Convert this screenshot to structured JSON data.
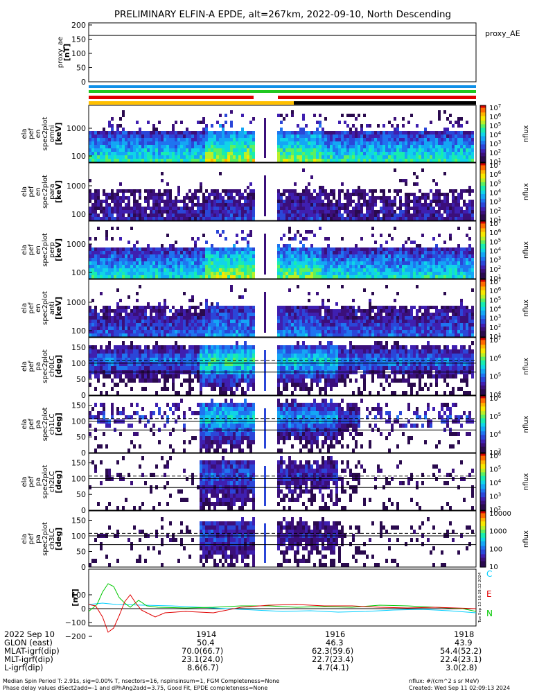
{
  "title": "PRELIMINARY ELFIN-A EPDE, alt=267km, 2022-09-10, North Descending",
  "chart_data": [
    {
      "type": "line",
      "panel": "proxy_ae",
      "ylabel_lines": [
        "proxy_ae",
        "[nT]"
      ],
      "ylim": [
        0,
        200
      ],
      "yticks": [
        "200",
        "150",
        "100",
        "50",
        "0"
      ],
      "legend": "proxy_AE",
      "series": [
        {
          "name": "proxy_AE",
          "value": 163
        }
      ]
    },
    {
      "type": "heatmap",
      "panels": [
        {
          "id": "en0",
          "ylabel_lines": [
            "ela",
            "pef",
            "en",
            "spec2plot",
            "omni",
            "[keV]"
          ],
          "yscale": "log",
          "yticks": [
            "1000",
            "100"
          ],
          "cbar_ticks": [
            "10^7",
            "10^6",
            "10^5",
            "10^4",
            "10^3",
            "10^2",
            "10^1"
          ],
          "cbar_label": "nflux"
        },
        {
          "id": "en1",
          "ylabel_lines": [
            "ela",
            "pef",
            "en",
            "spec2plot",
            "para",
            "[keV]"
          ],
          "yscale": "log",
          "yticks": [
            "1000",
            "100"
          ],
          "cbar_ticks": [
            "10^7",
            "10^6",
            "10^5",
            "10^4",
            "10^3",
            "10^2",
            "10^1"
          ],
          "cbar_label": "nflux"
        },
        {
          "id": "en2",
          "ylabel_lines": [
            "ela",
            "pef",
            "en",
            "spec2plot",
            "perp",
            "[keV]"
          ],
          "yscale": "log",
          "yticks": [
            "1000",
            "100"
          ],
          "cbar_ticks": [
            "10^7",
            "10^6",
            "10^5",
            "10^4",
            "10^3",
            "10^2",
            "10^1"
          ],
          "cbar_label": "nflux"
        },
        {
          "id": "en3",
          "ylabel_lines": [
            "ela",
            "pef",
            "en",
            "spec2plot",
            "anti",
            "[keV]"
          ],
          "yscale": "log",
          "yticks": [
            "1000",
            "100"
          ],
          "cbar_ticks": [
            "10^7",
            "10^6",
            "10^5",
            "10^4",
            "10^3",
            "10^2",
            "10^1"
          ],
          "cbar_label": "nflux"
        },
        {
          "id": "pa0",
          "ylabel_lines": [
            "ela",
            "pef",
            "pa",
            "spec2plot",
            "ch0LC",
            "[deg]"
          ],
          "yscale": "linear",
          "yticks": [
            "150",
            "100",
            "50",
            "0"
          ],
          "cbar_ticks": [
            "10^7",
            "10^6",
            "10^5",
            "10^4"
          ],
          "cbar_label": "nflux"
        },
        {
          "id": "pa1",
          "ylabel_lines": [
            "ela",
            "pef",
            "pa",
            "spec2plot",
            "ch1LC",
            "[deg]"
          ],
          "yscale": "linear",
          "yticks": [
            "150",
            "100",
            "50",
            "0"
          ],
          "cbar_ticks": [
            "10^6",
            "10^5",
            "10^4",
            "10^3"
          ],
          "cbar_label": "nflux"
        },
        {
          "id": "pa2",
          "ylabel_lines": [
            "ela",
            "pef",
            "pa",
            "spec2plot",
            "ch2LC",
            "[deg]"
          ],
          "yscale": "linear",
          "yticks": [
            "150",
            "100",
            "50",
            "0"
          ],
          "cbar_ticks": [
            "10^6",
            "10^5",
            "10^4",
            "10^3",
            "10^2"
          ],
          "cbar_label": "nflux"
        },
        {
          "id": "pa3",
          "ylabel_lines": [
            "ela",
            "pef",
            "pa",
            "spec2plot",
            "ch3LC",
            "[deg]"
          ],
          "yscale": "linear",
          "yticks": [
            "150",
            "100",
            "50",
            "0"
          ],
          "cbar_ticks": [
            "10000",
            "1000",
            "100",
            "10"
          ],
          "cbar_label": "nflux"
        }
      ]
    },
    {
      "type": "line",
      "panel": "fgm",
      "ylabel": "[nT]",
      "ylim": [
        -200,
        200
      ],
      "yticks": [
        "100",
        "0",
        "−100",
        "−200"
      ],
      "legend": [
        "C",
        "E",
        "N"
      ],
      "colors": {
        "C": "#00cfff",
        "E": "#e00000",
        "N": "#00c800"
      },
      "side_text": "Tue Sep 13 16:28:12 2024"
    }
  ],
  "ephemeris": {
    "row_labels": [
      "2022 Sep 10",
      "GLON (east)",
      "MLAT-igrf(dip)",
      "MLT-igrf(dip)",
      "L-igrf(dip)"
    ],
    "columns": [
      {
        "time": "1914",
        "values": [
          "50.4",
          "70.0(66.7)",
          "23.1(24.0)",
          "8.6(6.7)"
        ]
      },
      {
        "time": "1916",
        "values": [
          "46.3",
          "62.3(59.6)",
          "22.7(23.4)",
          "4.7(4.1)"
        ]
      },
      {
        "time": "1918",
        "values": [
          "43.9",
          "54.4(52.2)",
          "22.4(23.1)",
          "3.0(2.8)"
        ]
      }
    ]
  },
  "footer": {
    "line1_left": "Median Spin Period T: 2.91s, sig=0.00% T, nsectors=16, nspinsinsum=1, FGM Completeness=None",
    "line2_left": "Phase delay values dSect2add=-1 and dPhAng2add=3.75, Good Fit, EPDE completeness=None",
    "line1_right": "nflux: #/(cm^2 s sr MeV)",
    "line2_right": "Created: Wed Sep 11 02:09:13 2024"
  }
}
